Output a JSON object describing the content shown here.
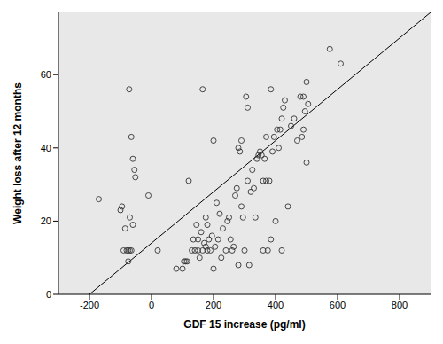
{
  "chart_data": {
    "type": "scatter",
    "x_label": "GDF 15 increase (pg/ml)",
    "y_label": "Weight loss after 12 months",
    "xlim": [
      -300,
      900
    ],
    "xticks": [
      -200,
      0,
      200,
      400,
      600,
      800
    ],
    "ylim": [
      0,
      77
    ],
    "yticks": [
      0,
      20,
      40,
      60
    ],
    "grid": false,
    "series": [
      {
        "type": "scatter",
        "marker": "circle",
        "color": "#333333",
        "x": [
          -170,
          -100,
          -95,
          -90,
          -85,
          -80,
          -75,
          -70,
          -65,
          -72,
          -75,
          -70,
          -65,
          -60,
          -55,
          -52,
          -60,
          -10,
          20,
          80,
          100,
          105,
          110,
          115,
          120,
          130,
          135,
          140,
          145,
          150,
          150,
          155,
          160,
          165,
          165,
          170,
          175,
          175,
          180,
          180,
          185,
          190,
          195,
          200,
          200,
          205,
          210,
          215,
          220,
          225,
          230,
          240,
          245,
          250,
          255,
          260,
          265,
          270,
          275,
          280,
          280,
          285,
          290,
          290,
          295,
          300,
          305,
          310,
          315,
          310,
          320,
          325,
          330,
          335,
          340,
          345,
          350,
          355,
          360,
          360,
          365,
          370,
          370,
          375,
          380,
          385,
          385,
          390,
          395,
          400,
          405,
          410,
          415,
          420,
          420,
          425,
          430,
          440,
          450,
          460,
          470,
          480,
          485,
          490,
          490,
          495,
          500,
          500,
          505,
          575,
          610
        ],
        "values": [
          26,
          23,
          24,
          12,
          18,
          12,
          12,
          12,
          12,
          56,
          9,
          21,
          43,
          37,
          34,
          32,
          19,
          27,
          12,
          7,
          7,
          9,
          9,
          9,
          31,
          12,
          15,
          12,
          19,
          12,
          15,
          10,
          17,
          12,
          56,
          14,
          13,
          21,
          12,
          19,
          15,
          12,
          16,
          42,
          7,
          13,
          25,
          15,
          22,
          10,
          18,
          12,
          20,
          21,
          15,
          12,
          13,
          27,
          29,
          40,
          8,
          39,
          42,
          24,
          21,
          12,
          54,
          51,
          8,
          31,
          28,
          34,
          29,
          21,
          37,
          38,
          39,
          38,
          31,
          12,
          37,
          31,
          43,
          12,
          31,
          56,
          15,
          39,
          43,
          20,
          45,
          40,
          45,
          48,
          12,
          51,
          53,
          24,
          46,
          48,
          42,
          54,
          43,
          45,
          54,
          50,
          58,
          36,
          52,
          67,
          63
        ]
      },
      {
        "type": "line",
        "color": "#000000",
        "x": [
          -200,
          900
        ],
        "values": [
          0,
          77
        ]
      }
    ]
  }
}
